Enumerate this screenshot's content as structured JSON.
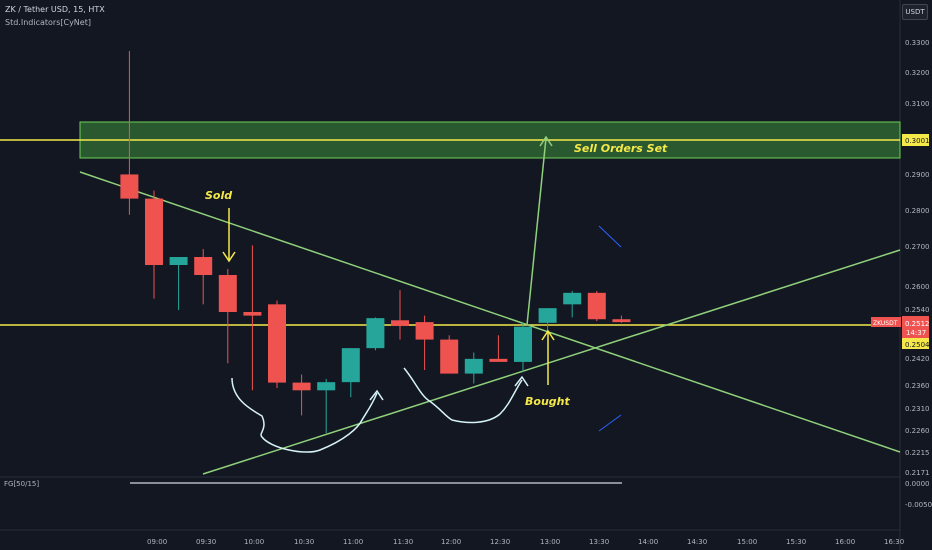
{
  "header": {
    "symbol_line": "ZK / Tether USD, 15, HTX",
    "indicator_line": "Std.Indicators[CyNet]",
    "currency_button": "USDT"
  },
  "sub_pane": {
    "label": "FG[50/15]",
    "ticks": [
      "0.0000",
      "-0.0050"
    ]
  },
  "annotations": {
    "sold": "Sold",
    "bought": "Bought",
    "sell_orders": "Sell Orders Set"
  },
  "price_axis": {
    "ticks": [
      "0.3300",
      "0.3200",
      "0.3100",
      "0.2900",
      "0.2800",
      "0.2700",
      "0.2600",
      "0.2540",
      "0.2420",
      "0.2360",
      "0.2310",
      "0.2260",
      "0.2215",
      "0.2171"
    ],
    "badge_sell": "0.3001",
    "badge_symbol": "ZKUSDT",
    "badge_price": "0.2512",
    "badge_countdown": "14:37",
    "badge_support": "0.2504"
  },
  "time_axis": {
    "ticks": [
      "09:00",
      "09:30",
      "10:00",
      "10:30",
      "11:00",
      "11:30",
      "12:00",
      "12:30",
      "13:00",
      "13:30",
      "14:00",
      "14:30",
      "15:00",
      "15:30",
      "16:00",
      "16:30"
    ]
  },
  "colors": {
    "background": "#131722",
    "bull": "#26a69a",
    "bear": "#ef5350",
    "horizontal_level": "#f5e94a",
    "trendline": "#8fd17a",
    "zone": "#3f8f3a",
    "hand_drawn": "#d6f3f8",
    "annotation_text": "#f5e94a"
  },
  "chart_data": {
    "type": "candlestick",
    "timeframe": "15m",
    "exchange": "HTX",
    "pair": "ZK/USDT",
    "candles": [
      {
        "time": "08:45",
        "open": 0.2907,
        "high": 0.328,
        "low": 0.2795,
        "close": 0.284
      },
      {
        "time": "09:00",
        "open": 0.284,
        "high": 0.2862,
        "low": 0.2575,
        "close": 0.266
      },
      {
        "time": "09:15",
        "open": 0.266,
        "high": 0.268,
        "low": 0.2545,
        "close": 0.268
      },
      {
        "time": "09:30",
        "open": 0.268,
        "high": 0.27,
        "low": 0.256,
        "close": 0.2635
      },
      {
        "time": "09:45",
        "open": 0.2635,
        "high": 0.265,
        "low": 0.2415,
        "close": 0.254
      },
      {
        "time": "10:00",
        "open": 0.254,
        "high": 0.271,
        "low": 0.2355,
        "close": 0.253
      },
      {
        "time": "10:15",
        "open": 0.256,
        "high": 0.257,
        "low": 0.236,
        "close": 0.2372
      },
      {
        "time": "10:30",
        "open": 0.2372,
        "high": 0.239,
        "low": 0.23,
        "close": 0.2355
      },
      {
        "time": "10:45",
        "open": 0.2355,
        "high": 0.238,
        "low": 0.226,
        "close": 0.2373
      },
      {
        "time": "11:00",
        "open": 0.2373,
        "high": 0.245,
        "low": 0.234,
        "close": 0.245
      },
      {
        "time": "11:15",
        "open": 0.245,
        "high": 0.2525,
        "low": 0.2445,
        "close": 0.2523
      },
      {
        "time": "11:30",
        "open": 0.2517,
        "high": 0.2597,
        "low": 0.247,
        "close": 0.2502
      },
      {
        "time": "11:45",
        "open": 0.2512,
        "high": 0.253,
        "low": 0.24,
        "close": 0.247
      },
      {
        "time": "12:00",
        "open": 0.247,
        "high": 0.248,
        "low": 0.2395,
        "close": 0.2392
      },
      {
        "time": "12:15",
        "open": 0.2392,
        "high": 0.244,
        "low": 0.237,
        "close": 0.2425
      },
      {
        "time": "12:30",
        "open": 0.2425,
        "high": 0.248,
        "low": 0.2418,
        "close": 0.2418
      },
      {
        "time": "12:45",
        "open": 0.2418,
        "high": 0.251,
        "low": 0.2395,
        "close": 0.25
      },
      {
        "time": "13:00",
        "open": 0.251,
        "high": 0.255,
        "low": 0.249,
        "close": 0.255
      },
      {
        "time": "13:15",
        "open": 0.256,
        "high": 0.2595,
        "low": 0.2525,
        "close": 0.259
      },
      {
        "time": "13:30",
        "open": 0.259,
        "high": 0.2595,
        "low": 0.2515,
        "close": 0.252
      },
      {
        "time": "13:45",
        "open": 0.252,
        "high": 0.253,
        "low": 0.251,
        "close": 0.2512
      }
    ],
    "levels": [
      {
        "name": "sell orders",
        "price": 0.3001
      },
      {
        "name": "support",
        "price": 0.2504
      }
    ],
    "zone": {
      "from": 0.297,
      "to": 0.306
    },
    "indicator": {
      "name": "FG[50/15]",
      "value": 0.0
    }
  }
}
